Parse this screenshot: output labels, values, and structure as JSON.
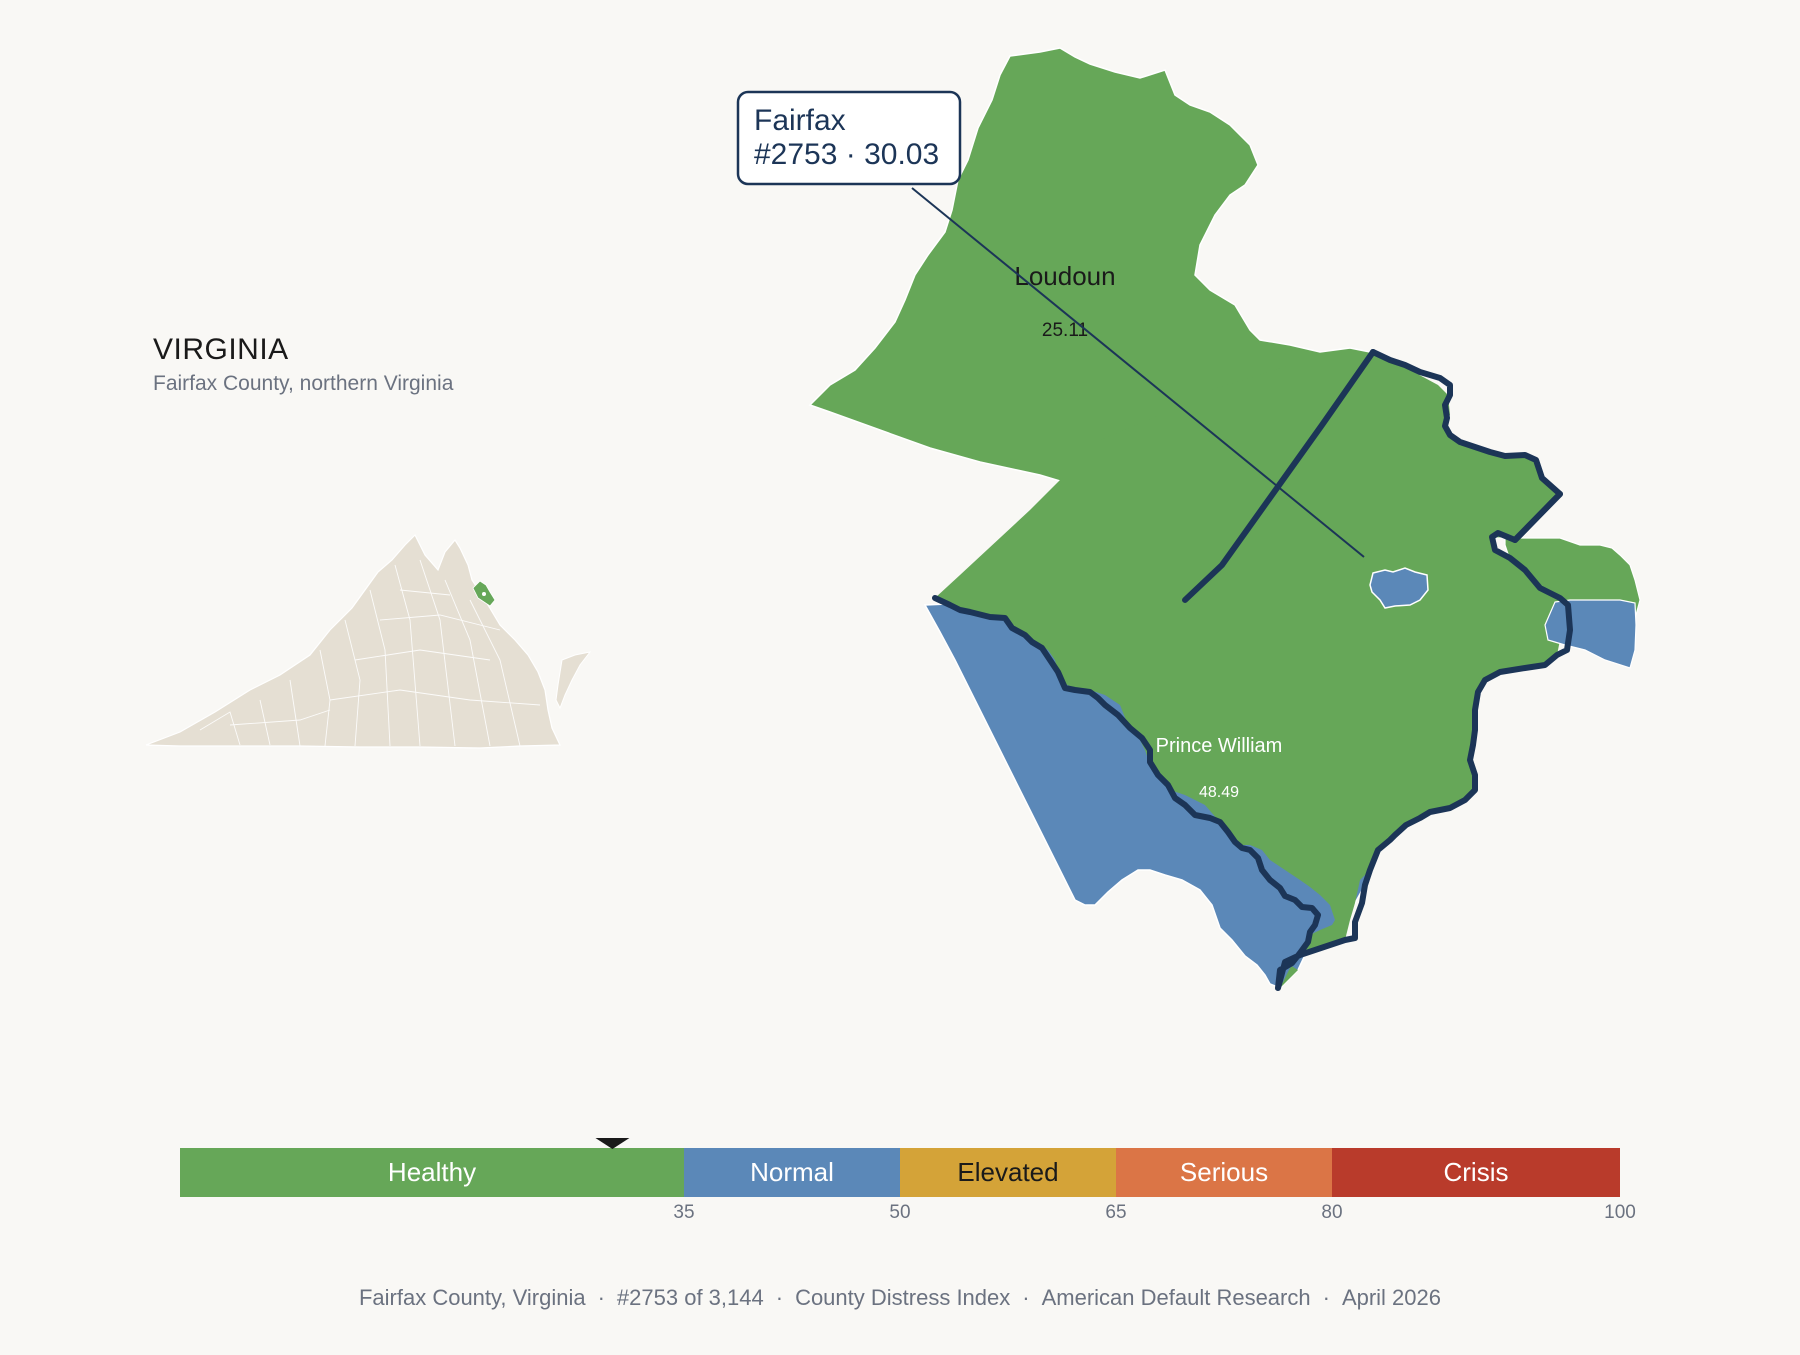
{
  "header": {
    "state": "VIRGINIA",
    "subtitle": "Fairfax County, northern Virginia"
  },
  "callout": {
    "county": "Fairfax",
    "rank_score": "#2753 · 30.03"
  },
  "map_labels": {
    "loudoun": {
      "name": "Loudoun",
      "score": "25.11"
    },
    "prince_william": {
      "name": "Prince William",
      "score": "48.49"
    }
  },
  "colors": {
    "background": "#f9f8f5",
    "healthy": "#66a758",
    "normal": "#5b88b8",
    "elevated": "#d4a338",
    "serious": "#db7546",
    "crisis": "#b93b2b",
    "highlight_outline": "#1c3557",
    "state_fill": "#e5dfd3"
  },
  "scale": {
    "min": 0,
    "max": 100,
    "marker_value": 30.03,
    "bands": [
      {
        "label": "Healthy",
        "from": 0,
        "to": 35,
        "color": "#66a758",
        "text_color": "#ffffff"
      },
      {
        "label": "Normal",
        "from": 35,
        "to": 50,
        "color": "#5b88b8",
        "text_color": "#ffffff"
      },
      {
        "label": "Elevated",
        "from": 50,
        "to": 65,
        "color": "#d4a338",
        "text_color": "#1a1a1a"
      },
      {
        "label": "Serious",
        "from": 65,
        "to": 80,
        "color": "#db7546",
        "text_color": "#ffffff"
      },
      {
        "label": "Crisis",
        "from": 80,
        "to": 100,
        "color": "#b93b2b",
        "text_color": "#ffffff"
      }
    ],
    "ticks": [
      "35",
      "50",
      "65",
      "80",
      "100"
    ]
  },
  "footer": {
    "county": "Fairfax County, Virginia",
    "rank": "#2753 of 3,144",
    "index": "County Distress Index",
    "source": "American Default Research",
    "date": "April 2026"
  }
}
